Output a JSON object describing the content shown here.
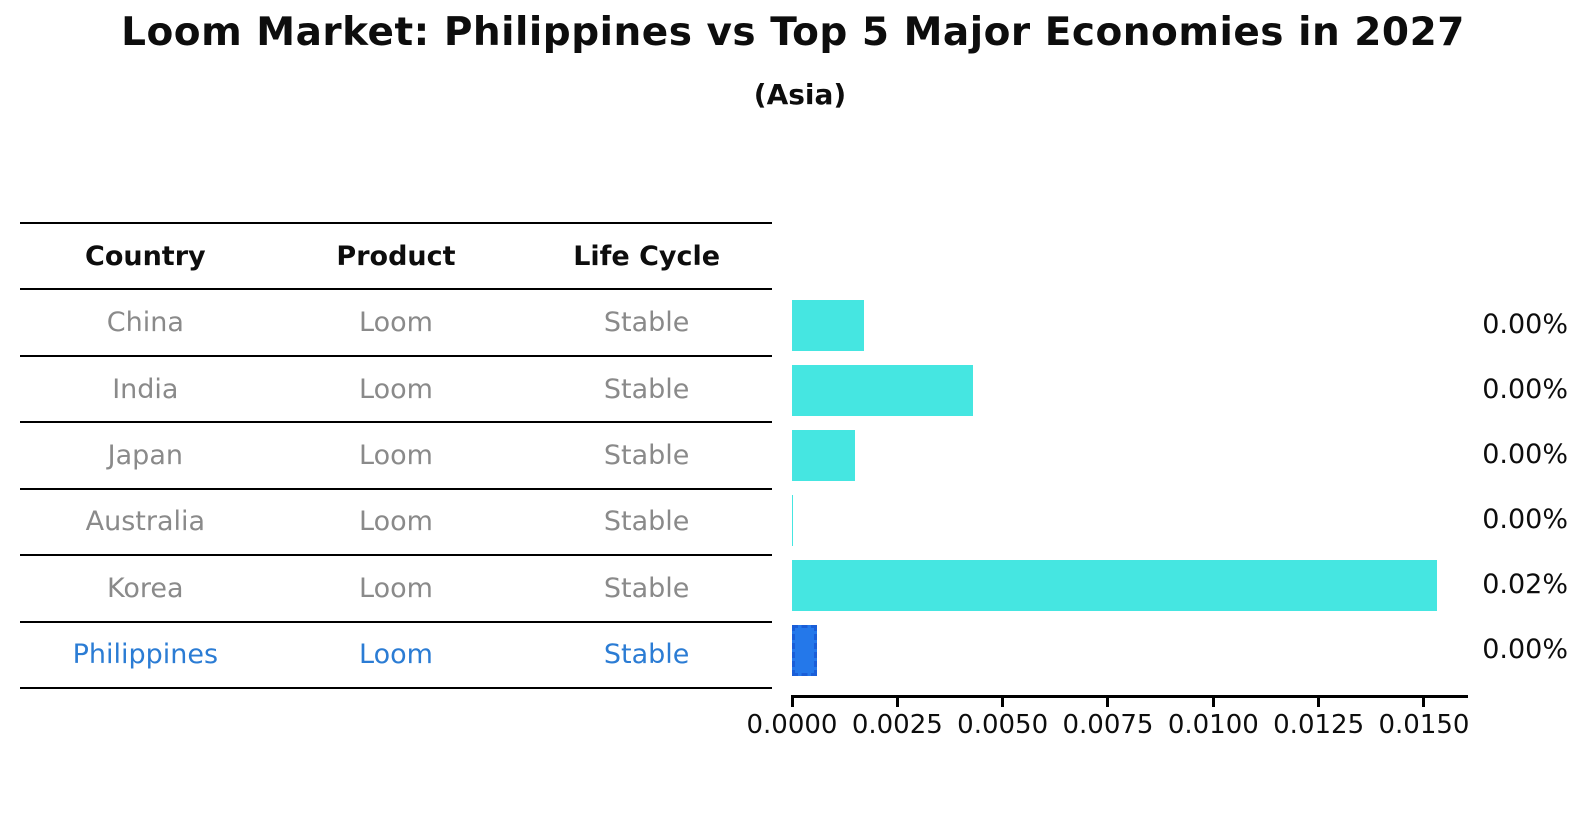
{
  "header": {
    "title": "Loom Market: Philippines vs Top 5 Major Economies in 2027",
    "subtitle": "(Asia)"
  },
  "table": {
    "columns": [
      "Country",
      "Product",
      "Life Cycle"
    ],
    "rows": [
      {
        "country": "China",
        "product": "Loom",
        "life_cycle": "Stable",
        "highlight": false
      },
      {
        "country": "India",
        "product": "Loom",
        "life_cycle": "Stable",
        "highlight": false
      },
      {
        "country": "Japan",
        "product": "Loom",
        "life_cycle": "Stable",
        "highlight": false
      },
      {
        "country": "Australia",
        "product": "Loom",
        "life_cycle": "Stable",
        "highlight": false
      },
      {
        "country": "Korea",
        "product": "Loom",
        "life_cycle": "Stable",
        "highlight": false
      },
      {
        "country": "Philippines",
        "product": "Loom",
        "life_cycle": "Stable",
        "highlight": true
      }
    ]
  },
  "chart_data": {
    "type": "bar",
    "orientation": "horizontal",
    "title": "Loom Market: Philippines vs Top 5 Major Economies in 2027",
    "subtitle": "(Asia)",
    "categories": [
      "China",
      "India",
      "Japan",
      "Australia",
      "Korea",
      "Philippines"
    ],
    "values": [
      0.0017,
      0.0043,
      0.0015,
      3e-05,
      0.0153,
      0.0006
    ],
    "value_labels": [
      "0.00%",
      "0.00%",
      "0.00%",
      "0.00%",
      "0.02%",
      "0.00%"
    ],
    "highlight_category": "Philippines",
    "xlim": [
      0,
      0.016
    ],
    "x_ticks": [
      0.0,
      0.0025,
      0.005,
      0.0075,
      0.01,
      0.0125,
      0.015
    ],
    "x_tick_labels": [
      "0.0000",
      "0.0025",
      "0.0050",
      "0.0075",
      "0.0100",
      "0.0125",
      "0.0150"
    ],
    "grid": false,
    "legend": "none",
    "colors": {
      "bar_default": "#45E6E1",
      "bar_highlight": "#2478EA",
      "bar_highlight_border": "#1A5ED8",
      "highlight_text": "#2B7CD4",
      "row_text": "#8a8a8a",
      "text": "#0d0d0d"
    }
  }
}
